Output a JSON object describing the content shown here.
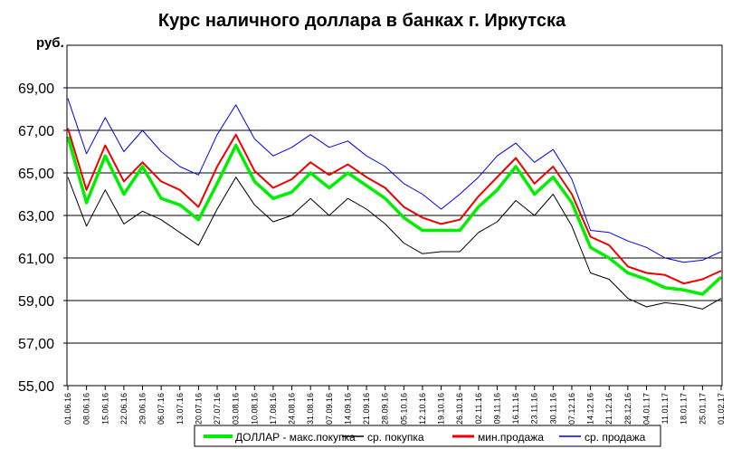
{
  "chart_data": {
    "type": "line",
    "title": "Курс наличного доллара в банках г. Иркутска",
    "ylabel": "руб.",
    "ylim": [
      55,
      71
    ],
    "yticks": [
      "55,00",
      "57,00",
      "59,00",
      "61,00",
      "63,00",
      "65,00",
      "67,00",
      "69,00"
    ],
    "ytick_values": [
      55,
      57,
      59,
      61,
      63,
      65,
      67,
      69
    ],
    "grid": true,
    "legend_position": "bottom",
    "categories": [
      "01.06.16",
      "08.06.16",
      "15.06.16",
      "22.06.16",
      "29.06.16",
      "06.07.16",
      "13.07.16",
      "20.07.16",
      "27.07.16",
      "03.08.16",
      "10.08.16",
      "17.08.16",
      "24.08.16",
      "31.08.16",
      "07.09.16",
      "14.09.16",
      "21.09.16",
      "28.09.16",
      "05.10.16",
      "12.10.16",
      "19.10.16",
      "26.10.16",
      "02.11.16",
      "09.11.16",
      "16.11.16",
      "23.11.16",
      "30.11.16",
      "07.12.16",
      "14.12.16",
      "21.12.16",
      "28.12.16",
      "04.01.17",
      "11.01.17",
      "18.01.17",
      "25.01.17",
      "01.02.17"
    ],
    "series": [
      {
        "name": "ДОЛЛАР  - макс.покупка",
        "color": "#00ee00",
        "width": 3.5,
        "values": [
          66.7,
          63.6,
          65.8,
          64.0,
          65.3,
          63.8,
          63.5,
          62.8,
          64.5,
          66.3,
          64.6,
          63.8,
          64.1,
          65.0,
          64.3,
          65.0,
          64.4,
          63.8,
          62.9,
          62.3,
          62.3,
          62.3,
          63.4,
          64.2,
          65.3,
          64.0,
          64.8,
          63.6,
          61.5,
          61.0,
          60.3,
          60.0,
          59.6,
          59.5,
          59.3,
          60.1
        ]
      },
      {
        "name": "ср. покупка",
        "color": "#000000",
        "width": 1,
        "values": [
          64.8,
          62.5,
          64.2,
          62.6,
          63.2,
          62.8,
          62.2,
          61.6,
          63.3,
          64.8,
          63.5,
          62.7,
          63.0,
          63.8,
          63.0,
          63.8,
          63.3,
          62.6,
          61.7,
          61.2,
          61.3,
          61.3,
          62.2,
          62.7,
          63.7,
          63.0,
          64.0,
          62.5,
          60.3,
          60.0,
          59.1,
          58.7,
          58.9,
          58.8,
          58.6,
          59.1
        ]
      },
      {
        "name": "мин.продажа",
        "color": "#ee0000",
        "width": 2,
        "values": [
          67.1,
          64.2,
          66.3,
          64.6,
          65.5,
          64.6,
          64.2,
          63.4,
          65.3,
          66.8,
          65.1,
          64.3,
          64.7,
          65.5,
          64.9,
          65.4,
          64.8,
          64.3,
          63.4,
          62.9,
          62.6,
          62.8,
          63.9,
          64.8,
          65.7,
          64.5,
          65.3,
          64.0,
          62.0,
          61.6,
          60.6,
          60.3,
          60.2,
          59.8,
          60.0,
          60.4
        ]
      },
      {
        "name": "ср. продажа",
        "color": "#0000ee",
        "width": 1,
        "values": [
          68.5,
          65.9,
          67.6,
          66.0,
          67.0,
          66.0,
          65.3,
          64.9,
          66.8,
          68.2,
          66.6,
          65.8,
          66.2,
          66.8,
          66.2,
          66.5,
          65.8,
          65.3,
          64.5,
          64.0,
          63.3,
          64.0,
          64.8,
          65.8,
          66.4,
          65.5,
          66.1,
          64.7,
          62.3,
          62.2,
          61.8,
          61.5,
          61.0,
          60.8,
          60.9,
          61.3
        ]
      }
    ]
  }
}
